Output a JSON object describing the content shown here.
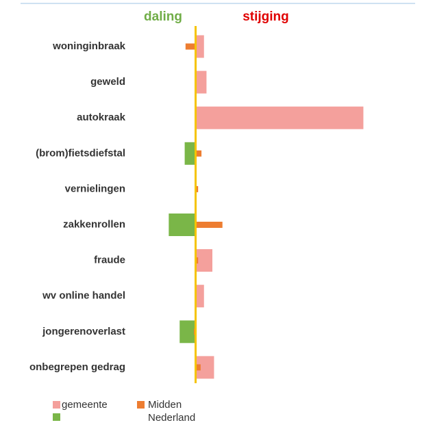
{
  "chart_data": {
    "type": "bar",
    "orientation": "horizontal",
    "annotations": [
      {
        "text": "daling",
        "color": "#70ad47"
      },
      {
        "text": "stijging",
        "color": "#e00000"
      }
    ],
    "categories": [
      "woninginbraak",
      "geweld",
      "autokraak",
      "(brom)fietsdiefstal",
      "vernielingen",
      "zakkenrollen",
      "fraude",
      "wv online handel",
      "jongerenoverlast",
      "onbegrepen gedrag"
    ],
    "series": [
      {
        "name": "gemeente",
        "color": "#f4a09c",
        "negative_color": "#7ab648",
        "values": [
          5,
          6.5,
          100,
          -6.5,
          0,
          -16,
          10,
          5,
          -9.5,
          11
        ]
      },
      {
        "name": "Midden Nederland",
        "color": "#ed7d31",
        "values": [
          -6,
          -0.5,
          0,
          3.5,
          1.5,
          16,
          1.5,
          0,
          -1,
          3
        ]
      }
    ],
    "xlim": [
      -39,
      128
    ],
    "zero_line_color": "#f5c400"
  }
}
